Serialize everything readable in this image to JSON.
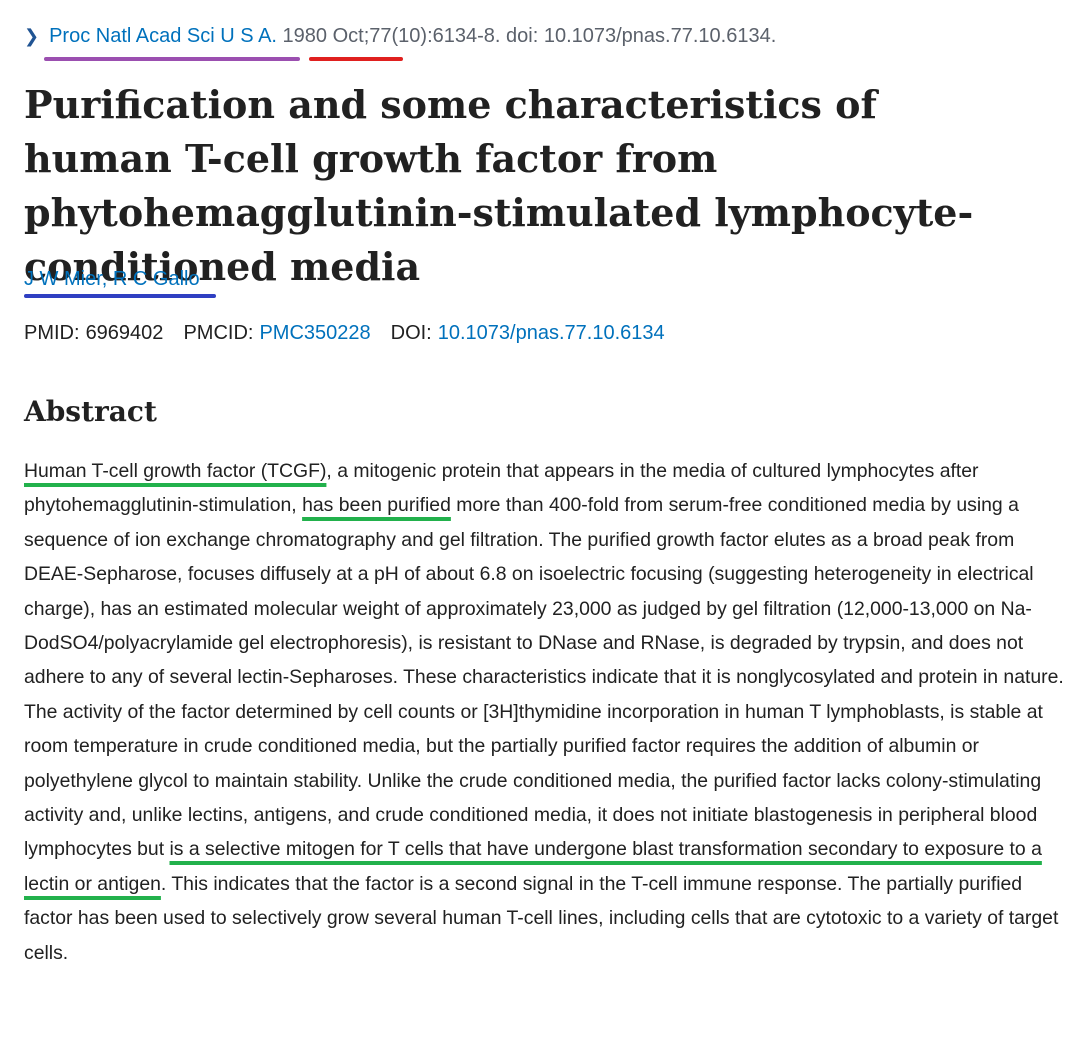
{
  "citation": {
    "journal": "Proc Natl Acad Sci U S A.",
    "date": "1980 Oct",
    "details": ";77(10):6134-8. doi: 10.1073/pnas.77.10.6134."
  },
  "title": "Purification and some characteristics of human T-cell growth factor from phytohemagglutinin-stimulated lymphocyte-conditioned media",
  "authors": [
    "J W Mier",
    "R C Gallo"
  ],
  "identifiers": {
    "pmid_label": "PMID:",
    "pmid": "6969402",
    "pmcid_label": "PMCID:",
    "pmcid": "PMC350228",
    "doi_label": "DOI:",
    "doi": "10.1073/pnas.77.10.6134"
  },
  "abstract": {
    "heading": "Abstract",
    "segments": [
      {
        "text": "Human T-cell growth factor (TCGF)",
        "highlight": true
      },
      {
        "text": ", a mitogenic protein that appears in the media of cultured lymphocytes after phytohemagglutinin-stimulation, ",
        "highlight": false
      },
      {
        "text": "has been purified",
        "highlight": true
      },
      {
        "text": " more than 400-fold from serum-free conditioned media by using a sequence of ion exchange chromatography and gel filtration. The purified growth factor elutes as a broad peak from DEAE-Sepharose, focuses diffusely at a pH of about 6.8 on isoelectric focusing (suggesting heterogeneity in electrical charge), has an estimated molecular weight of approximately 23,000 as judged by gel filtration (12,000-13,000 on Na-DodSO4/polyacrylamide gel electrophoresis), is resistant to DNase and RNase, is degraded by trypsin, and does not adhere to any of several lectin-Sepharoses. These characteristics indicate that it is nonglycosylated and protein in nature. The activity of the factor determined by cell counts or [3H]thymidine incorporation in human T lymphoblasts, is stable at room temperature in crude conditioned media, but the partially purified factor requires the addition of albumin or polyethylene glycol to maintain stability. Unlike the crude conditioned media, the purified factor lacks colony-stimulating activity and, unlike lectins, antigens, and crude conditioned media, it does not initiate blastogenesis in peripheral blood lymphocytes but ",
        "highlight": false
      },
      {
        "text": "is a selective mitogen for T cells that have undergone blast transformation secondary to exposure to a lectin or antigen",
        "highlight": true
      },
      {
        "text": ". This indicates that the factor is a second signal in the T-cell immune response. The partially purified factor has been used to selectively grow several human T-cell lines, including cells that are cytotoxic to a variety of target cells.",
        "highlight": false
      }
    ]
  },
  "annotation_colors": {
    "journal": "#9b4fb0",
    "date": "#e0201f",
    "authors": "#2f3fc2",
    "abstract": "#22b14c"
  }
}
